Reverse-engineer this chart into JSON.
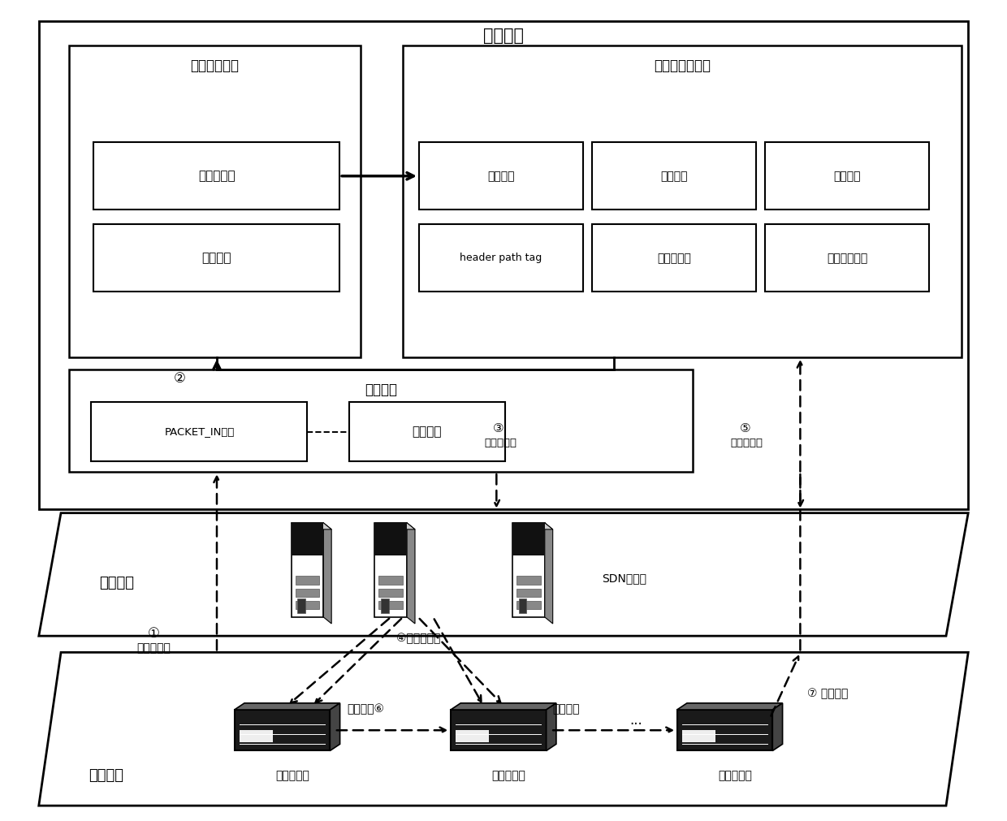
{
  "figsize": [
    12.4,
    10.11
  ],
  "dpi": 100,
  "verify_module": "验证模块",
  "security_verify": "安全规则验证",
  "forward_path": "转发层路径验证",
  "request_verify": "请求验证",
  "ctrl_plane": "控制平面",
  "data_plane": "数据平面",
  "sdn_controller": "SDN控制器",
  "flow_calc": "流路径计算",
  "safe_space": "安全空间",
  "flow_table": "流路径表",
  "path_detect": "路径探测",
  "result_feedback": "结果反馈",
  "header_path_tag": "header path tag",
  "probe_packet": "探测数据包",
  "abnormal_locate": "异常路径定位",
  "packet_in": "PACKET_IN解析",
  "constraint_space": "约束空间",
  "switch_entry": "入口交换机",
  "switch_middle": "中间交换机",
  "switch_exit": "出口交换机",
  "c1": "①",
  "c2": "②",
  "c3": "③",
  "c4": "④",
  "c5": "⑤",
  "c6": "⑥",
  "c7": "⑦",
  "flow_request": "流规则请求",
  "flow_rule_send": "流规则下发",
  "probe_send": "探测包下发",
  "flow_update": "流规则更新",
  "add_tag": "添加标签",
  "update_tag": "更新标签",
  "tag_feedback": "标签反馈",
  "dots": "...",
  "colors": {
    "black": "#000000",
    "white": "#ffffff",
    "server_dark": "#1a1a1a",
    "server_mid": "#555555",
    "server_light": "#888888",
    "switch_dark": "#111111",
    "switch_mid": "#333333",
    "switch_face": "#222222"
  }
}
